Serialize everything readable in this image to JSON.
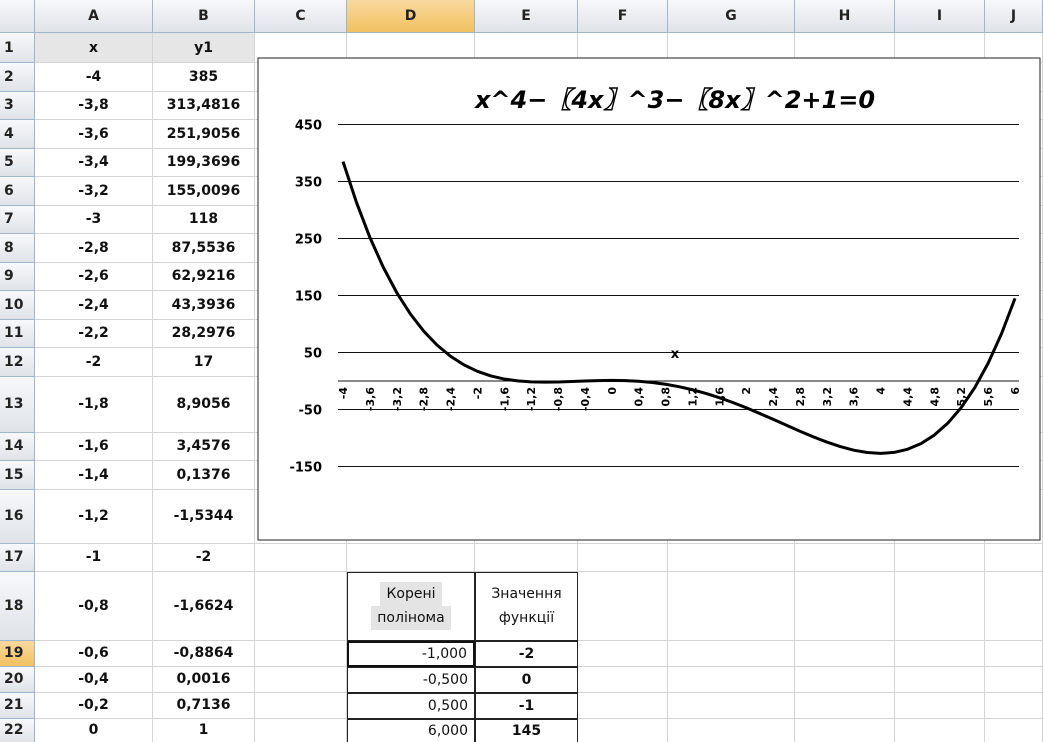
{
  "sheet": {
    "columns": [
      "A",
      "B",
      "C",
      "D",
      "E",
      "F",
      "G",
      "H",
      "I",
      "J"
    ],
    "row_numbers": [
      "1",
      "2",
      "3",
      "4",
      "5",
      "6",
      "7",
      "8",
      "9",
      "10",
      "11",
      "12",
      "13",
      "14",
      "15",
      "16",
      "17",
      "18",
      "19",
      "20",
      "21",
      "22"
    ],
    "column_A": [
      "x",
      "-4",
      "-3,8",
      "-3,6",
      "-3,4",
      "-3,2",
      "-3",
      "-2,8",
      "-2,6",
      "-2,4",
      "-2,2",
      "-2",
      "-1,8",
      "-1,6",
      "-1,4",
      "-1,2",
      "-1",
      "-0,8",
      "-0,6",
      "-0,4",
      "-0,2",
      "0"
    ],
    "column_B": [
      "y1",
      "385",
      "313,4816",
      "251,9056",
      "199,3696",
      "155,0096",
      "118",
      "87,5536",
      "62,9216",
      "43,3936",
      "28,2976",
      "17",
      "8,9056",
      "3,4576",
      "0,1376",
      "-1,5344",
      "-2",
      "-1,6624",
      "-0,8864",
      "0,0016",
      "0,7136",
      "1"
    ]
  },
  "roots_table": {
    "headers": [
      [
        "Корені",
        "полінома"
      ],
      [
        "Значення",
        "функції"
      ]
    ],
    "roots": [
      "-1,000",
      "-0,500",
      "0,500",
      "6,000"
    ],
    "values": [
      "-2",
      "0",
      "-1",
      "145"
    ]
  },
  "chart_data": {
    "type": "line",
    "title": "x^4−〖4x〗^3−〖8x〗^2+1=0",
    "annotation": "x",
    "categories": [
      "-4",
      null,
      "-3,6",
      null,
      "-3,2",
      null,
      "-2,8",
      null,
      "-2,4",
      null,
      "-2",
      null,
      "-1,6",
      null,
      "-1,2",
      null,
      "-0,8",
      null,
      "-0,4",
      null,
      "0",
      null,
      "0,4",
      null,
      "0,8",
      null,
      "1,2",
      null,
      "1,6",
      null,
      "2",
      null,
      "2,4",
      null,
      "2,8",
      null,
      "3,2",
      null,
      "3,6",
      null,
      "4",
      null,
      "4,4",
      null,
      "4,8",
      null,
      "5,2",
      null,
      "5,6",
      null,
      "6"
    ],
    "values": [
      385,
      313.4816,
      251.9056,
      199.3696,
      155.0096,
      118,
      87.5536,
      62.9216,
      43.3936,
      28.2976,
      17,
      8.9056,
      3.4576,
      0.1376,
      -1.5344,
      -2,
      -1.6624,
      -0.8864,
      0.0016,
      0.7136,
      1,
      0.6496,
      -0.5104,
      -2.6144,
      -5.7584,
      -10,
      -15.3584,
      -21.8144,
      -29.3104,
      -37.7504,
      -47,
      -56.8864,
      -67.1984,
      -77.6864,
      -88.0624,
      -98,
      -107.1344,
      -115.0624,
      -121.3424,
      -125.4944,
      -127,
      -125.3024,
      -119.8064,
      -109.8784,
      -94.8464,
      -74,
      -46.5904,
      -11.8304,
      31.1056,
      83.0816,
      145
    ],
    "color": "#000000",
    "ylim": [
      -150,
      450
    ],
    "yticks": [
      -150,
      -50,
      50,
      150,
      250,
      350,
      450
    ],
    "grid": true
  }
}
